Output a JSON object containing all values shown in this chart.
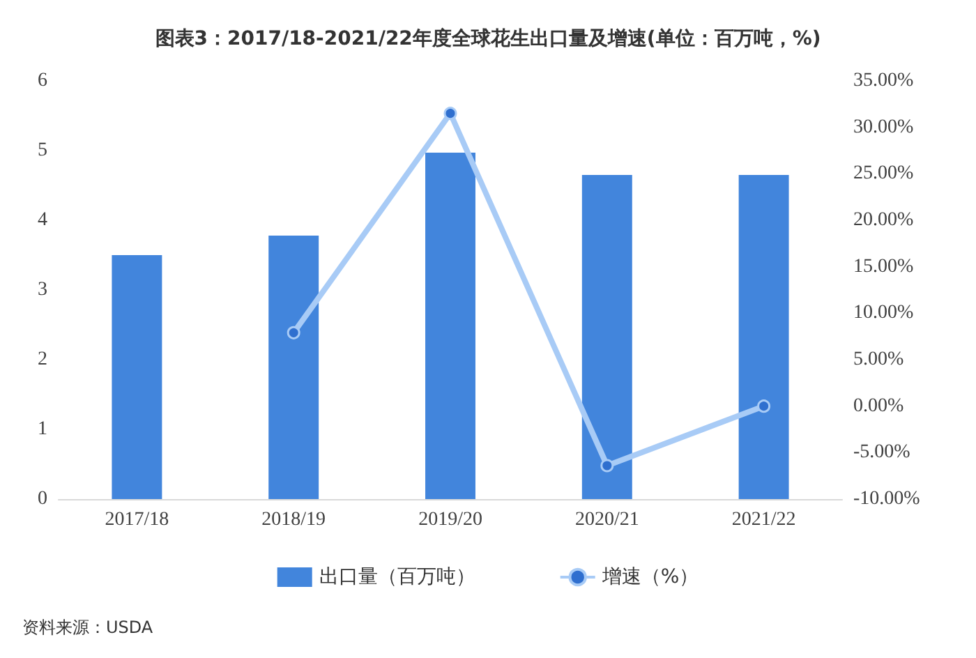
{
  "chart_data": {
    "type": "bar",
    "title": "图表3：2017/18-2021/22年度全球花生出口量及增速(单位：百万吨，%)",
    "categories": [
      "2017/18",
      "2018/19",
      "2019/20",
      "2020/21",
      "2021/22"
    ],
    "series": [
      {
        "name": "出口量（百万吨）",
        "color": "#4285dc",
        "values": [
          3.5,
          3.78,
          4.97,
          4.65,
          4.65
        ]
      },
      {
        "name": "增速（%）",
        "type": "line",
        "axis": "y2",
        "color": "#a8cbf6",
        "marker": "circle",
        "values": [
          null,
          7.9,
          31.5,
          -6.4,
          0
        ]
      }
    ],
    "ylim": [
      0,
      6
    ],
    "yticks": [
      0,
      1,
      2,
      3,
      4,
      5,
      6
    ],
    "y2lim": [
      -10,
      35
    ],
    "y2ticks": [
      {
        "value": -10,
        "label": "-10.00%"
      },
      {
        "value": -5,
        "label": "-5.00%"
      },
      {
        "value": 0,
        "label": "0.00%"
      },
      {
        "value": 5,
        "label": "5.00%"
      },
      {
        "value": 10,
        "label": "10.00%"
      },
      {
        "value": 15,
        "label": "15.00%"
      },
      {
        "value": 20,
        "label": "20.00%"
      },
      {
        "value": 25,
        "label": "25.00%"
      },
      {
        "value": 30,
        "label": "30.00%"
      },
      {
        "value": 35,
        "label": "35.00%"
      }
    ],
    "grid": false,
    "legend": "bottom",
    "annotations": [
      "资料来源：USDA"
    ]
  }
}
